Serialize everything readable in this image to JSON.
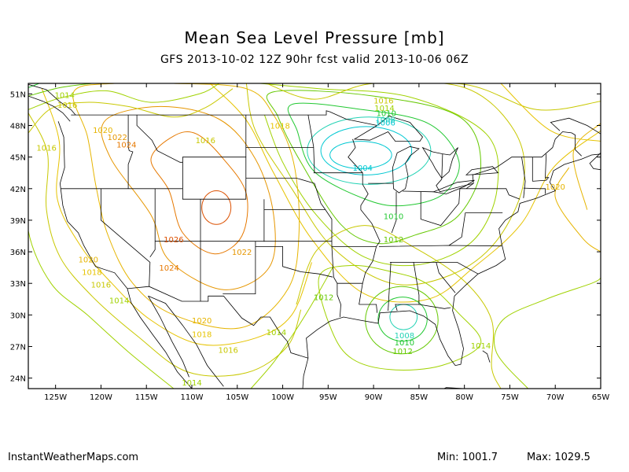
{
  "title": "Mean Sea Level Pressure [mb]",
  "subtitle": "GFS 2013-10-02 12Z 90hr fcst valid 2013-10-06 06Z",
  "footer": {
    "site": "InstantWeatherMaps.com",
    "min_label": "Min: 1001.7",
    "max_label": "Max: 1029.5"
  },
  "map": {
    "projection": "equirectangular",
    "lon_range": [
      -128,
      -65
    ],
    "lat_range": [
      23,
      52
    ],
    "lat_ticks": [
      {
        "value": 51,
        "label": "51N"
      },
      {
        "value": 48,
        "label": "48N"
      },
      {
        "value": 45,
        "label": "45N"
      },
      {
        "value": 42,
        "label": "42N"
      },
      {
        "value": 39,
        "label": "39N"
      },
      {
        "value": 36,
        "label": "36N"
      },
      {
        "value": 33,
        "label": "33N"
      },
      {
        "value": 30,
        "label": "30N"
      },
      {
        "value": 27,
        "label": "27N"
      },
      {
        "value": 24,
        "label": "24N"
      }
    ],
    "lon_ticks": [
      {
        "value": -125,
        "label": "125W"
      },
      {
        "value": -120,
        "label": "120W"
      },
      {
        "value": -115,
        "label": "115W"
      },
      {
        "value": -110,
        "label": "110W"
      },
      {
        "value": -105,
        "label": "105W"
      },
      {
        "value": -100,
        "label": "100W"
      },
      {
        "value": -95,
        "label": "95W"
      },
      {
        "value": -90,
        "label": "90W"
      },
      {
        "value": -85,
        "label": "85W"
      },
      {
        "value": -80,
        "label": "80W"
      },
      {
        "value": -75,
        "label": "75W"
      },
      {
        "value": -70,
        "label": "70W"
      },
      {
        "value": -65,
        "label": "65W"
      }
    ],
    "isobar_colors": {
      "1004": "#00c8d2",
      "1006": "#00c8d2",
      "1008": "#22d2b4",
      "1010": "#22c832",
      "1012": "#64c800",
      "1014": "#a0d200",
      "1016": "#c8c800",
      "1018": "#e6c300",
      "1020": "#e6b400",
      "1022": "#e69600",
      "1024": "#e67800",
      "1026": "#dc5000"
    },
    "pressure_labels": [
      {
        "text": "1014",
        "lon": -124.0,
        "lat": 50.9
      },
      {
        "text": "1016",
        "lon": -123.7,
        "lat": 50.0
      },
      {
        "text": "1020",
        "lon": -119.8,
        "lat": 47.6
      },
      {
        "text": "1022",
        "lon": -118.2,
        "lat": 46.9
      },
      {
        "text": "1024",
        "lon": -117.2,
        "lat": 46.2
      },
      {
        "text": "1016",
        "lon": -126.0,
        "lat": 45.9
      },
      {
        "text": "1016",
        "lon": -108.5,
        "lat": 46.6
      },
      {
        "text": "1018",
        "lon": -100.3,
        "lat": 48.0
      },
      {
        "text": "1016",
        "lon": -88.9,
        "lat": 50.4
      },
      {
        "text": "1014",
        "lon": -88.8,
        "lat": 49.7
      },
      {
        "text": "1010",
        "lon": -88.6,
        "lat": 49.2
      },
      {
        "text": "1008",
        "lon": -88.7,
        "lat": 48.6
      },
      {
        "text": "1006",
        "lon": -88.7,
        "lat": 48.3
      },
      {
        "text": "1004",
        "lon": -91.2,
        "lat": 44.0
      },
      {
        "text": "1020",
        "lon": -70.0,
        "lat": 42.2
      },
      {
        "text": "1010",
        "lon": -87.8,
        "lat": 39.4
      },
      {
        "text": "1012",
        "lon": -87.8,
        "lat": 37.2
      },
      {
        "text": "1026",
        "lon": -112.0,
        "lat": 37.2
      },
      {
        "text": "1022",
        "lon": -104.5,
        "lat": 36.0
      },
      {
        "text": "1020",
        "lon": -121.4,
        "lat": 35.3
      },
      {
        "text": "1024",
        "lon": -112.5,
        "lat": 34.5
      },
      {
        "text": "1018",
        "lon": -121.0,
        "lat": 34.1
      },
      {
        "text": "1016",
        "lon": -120.0,
        "lat": 32.9
      },
      {
        "text": "1014",
        "lon": -118.0,
        "lat": 31.4
      },
      {
        "text": "1012",
        "lon": -95.5,
        "lat": 31.7
      },
      {
        "text": "1020",
        "lon": -108.9,
        "lat": 29.5
      },
      {
        "text": "1018",
        "lon": -108.9,
        "lat": 28.2
      },
      {
        "text": "1014",
        "lon": -100.7,
        "lat": 28.4
      },
      {
        "text": "1016",
        "lon": -106.0,
        "lat": 26.7
      },
      {
        "text": "1014",
        "lon": -110.0,
        "lat": 23.6
      },
      {
        "text": "1008",
        "lon": -86.6,
        "lat": 28.1
      },
      {
        "text": "1010",
        "lon": -86.6,
        "lat": 27.4
      },
      {
        "text": "1012",
        "lon": -86.8,
        "lat": 26.6
      },
      {
        "text": "1014",
        "lon": -78.2,
        "lat": 27.1
      }
    ]
  }
}
